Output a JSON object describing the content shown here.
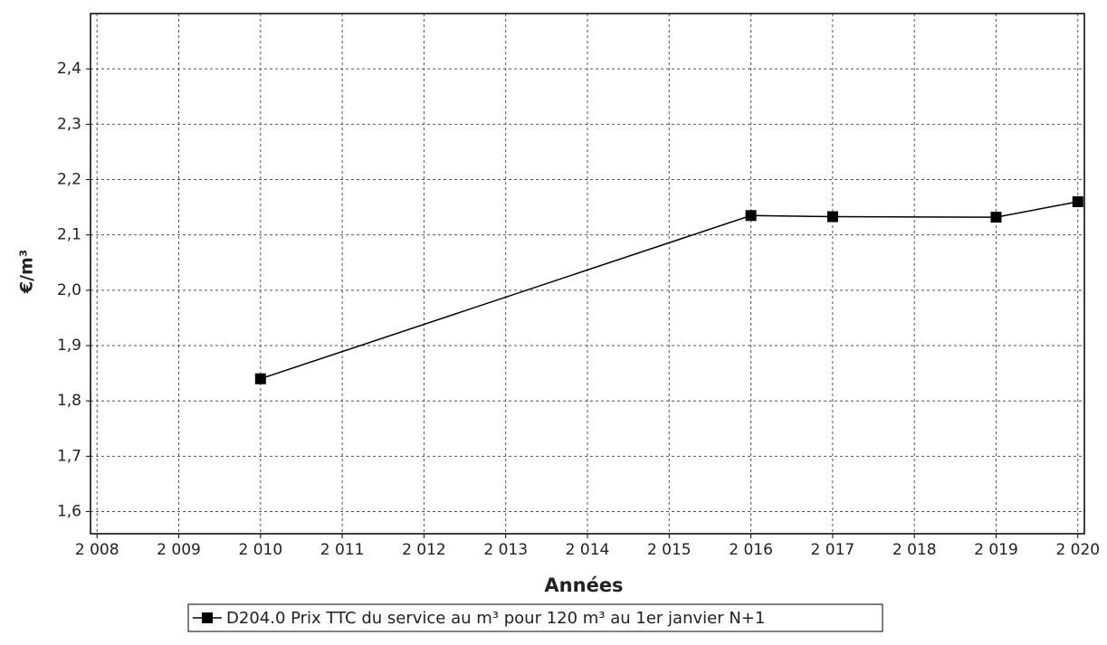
{
  "chart_data": {
    "type": "line",
    "x_label": "Années",
    "y_label": "€/m³",
    "series": [
      {
        "name": "D204.0 Prix TTC du service au m³ pour 120 m³ au 1er janvier N+1",
        "color": "#000000",
        "x": [
          2010,
          2016,
          2017,
          2019,
          2020
        ],
        "values": [
          1.84,
          2.135,
          2.133,
          2.132,
          2.16
        ]
      }
    ],
    "xlim": [
      2007.92,
      2020.08
    ],
    "xticks": [
      {
        "value": 2008,
        "label": "2 008"
      },
      {
        "value": 2009,
        "label": "2 009"
      },
      {
        "value": 2010,
        "label": "2 010"
      },
      {
        "value": 2011,
        "label": "2 011"
      },
      {
        "value": 2012,
        "label": "2 012"
      },
      {
        "value": 2013,
        "label": "2 013"
      },
      {
        "value": 2014,
        "label": "2 014"
      },
      {
        "value": 2015,
        "label": "2 015"
      },
      {
        "value": 2016,
        "label": "2 016"
      },
      {
        "value": 2017,
        "label": "2 017"
      },
      {
        "value": 2018,
        "label": "2 018"
      },
      {
        "value": 2019,
        "label": "2 019"
      },
      {
        "value": 2020,
        "label": "2 020"
      }
    ],
    "ylim": [
      1.56,
      2.5
    ],
    "yticks": [
      {
        "value": 1.6,
        "label": "1,6"
      },
      {
        "value": 1.7,
        "label": "1,7"
      },
      {
        "value": 1.8,
        "label": "1,8"
      },
      {
        "value": 1.9,
        "label": "1,9"
      },
      {
        "value": 2.0,
        "label": "2,0"
      },
      {
        "value": 2.1,
        "label": "2,1"
      },
      {
        "value": 2.2,
        "label": "2,2"
      },
      {
        "value": 2.3,
        "label": "2,3"
      },
      {
        "value": 2.4,
        "label": "2,4"
      }
    ],
    "grid": true,
    "legend": "bottom"
  }
}
